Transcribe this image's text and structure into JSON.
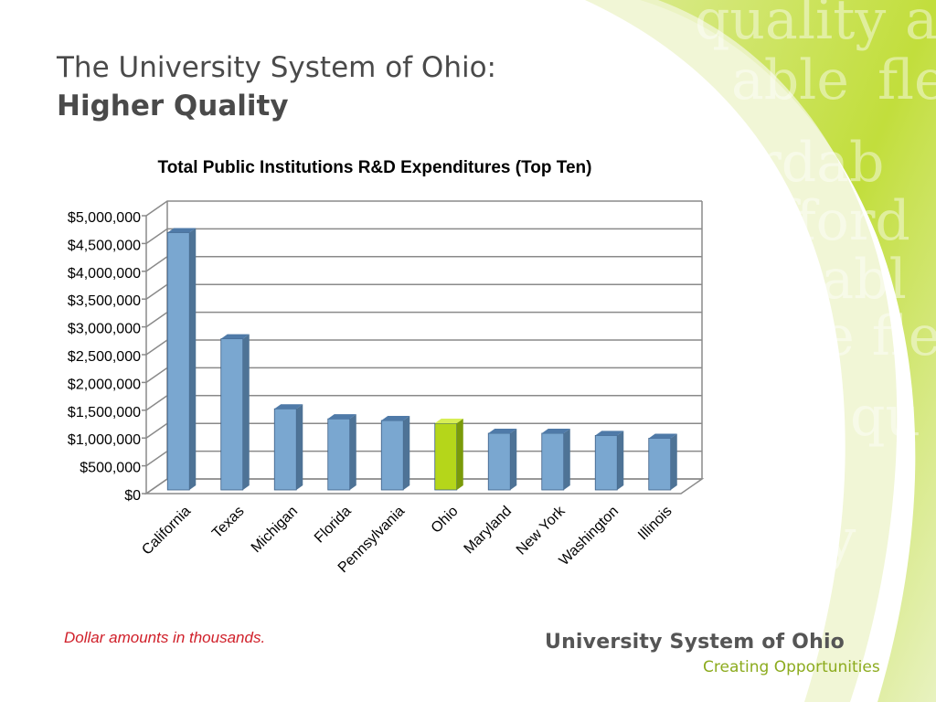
{
  "slide": {
    "title_line1": "The University System of Ohio:",
    "title_line2": "Higher Quality",
    "note": "Dollar amounts in thousands.",
    "brand_name": "University System of Ohio",
    "brand_tagline": "Creating Opportunities",
    "watermark_words": [
      "quality",
      "a",
      "able",
      "fle",
      "ordab",
      "fford",
      "dabl",
      "le fle",
      "qu",
      "lity"
    ]
  },
  "chart_data": {
    "type": "bar",
    "title": "Total Public Institutions R&D Expenditures (Top Ten)",
    "xlabel": "",
    "ylabel": "",
    "categories": [
      "California",
      "Texas",
      "Michigan",
      "Florida",
      "Pennsylvania",
      "Ohio",
      "Maryland",
      "New York",
      "Washington",
      "Illinois"
    ],
    "values": [
      4630000,
      2720000,
      1460000,
      1280000,
      1250000,
      1200000,
      1020000,
      1020000,
      980000,
      930000
    ],
    "ylim": [
      0,
      5000000
    ],
    "yticks": [
      "$0",
      "$500,000",
      "$1,000,000",
      "$1,500,000",
      "$2,000,000",
      "$2,500,000",
      "$3,000,000",
      "$3,500,000",
      "$4,000,000",
      "$4,500,000",
      "$5,000,000"
    ],
    "grid": true,
    "legend": "none",
    "highlight_category": "Ohio",
    "colors": {
      "bar": "#7aa7d0",
      "bar_highlight": "#b5d61a"
    }
  }
}
